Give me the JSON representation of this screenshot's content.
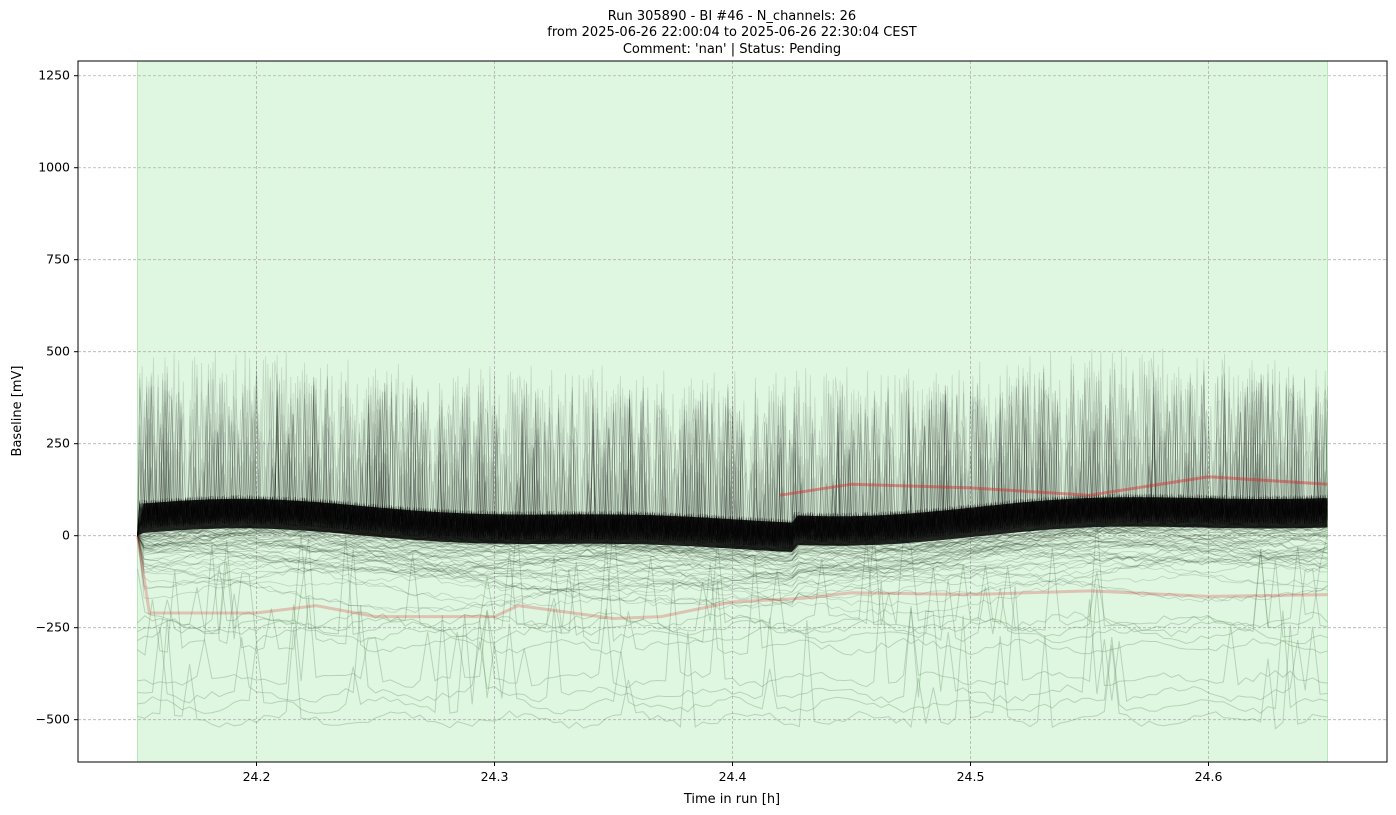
{
  "chart_data": {
    "type": "line",
    "title_lines": [
      "Run 305890  -  BI #46  -  N_channels: 26",
      "from  2025-06-26 22:00:04  to  2025-06-26 22:30:04 CEST",
      "Comment: 'nan' | Status: Pending"
    ],
    "xlabel": "Time in run [h]",
    "ylabel": "Baseline [mV]",
    "xlim": [
      24.125,
      24.675
    ],
    "ylim": [
      -615,
      1290
    ],
    "x_ticks": [
      24.2,
      24.3,
      24.4,
      24.5,
      24.6
    ],
    "x_tick_labels": [
      "24.2",
      "24.3",
      "24.4",
      "24.5",
      "24.6"
    ],
    "y_ticks": [
      -500,
      -250,
      0,
      250,
      500,
      750,
      1000,
      1250
    ],
    "y_tick_labels": [
      "−500",
      "−250",
      "0",
      "250",
      "500",
      "750",
      "1000",
      "1250"
    ],
    "grid": true,
    "highlight_span": {
      "x0": 24.15,
      "x1": 24.65,
      "color": "#dff7e0"
    },
    "series_style": {
      "black_color": "#000000",
      "red_color": "#d62728",
      "grey_color": "#6b8e6b"
    },
    "time_range": [
      24.15,
      24.65
    ],
    "bands": [
      {
        "kind": "black",
        "x": [
          24.15,
          24.2,
          24.25,
          24.3,
          24.35,
          24.4,
          24.45,
          24.5,
          24.55,
          24.6,
          24.65
        ],
        "y": [
          0,
          20,
          10,
          15,
          5,
          20,
          60,
          40,
          30,
          50,
          20
        ]
      }
    ],
    "red_lower": {
      "x": [
        24.15,
        24.155,
        24.2,
        24.225,
        24.25,
        24.3,
        24.31,
        24.35,
        24.37,
        24.4,
        24.43,
        24.45,
        24.5,
        24.55,
        24.6,
        24.65
      ],
      "y": [
        0,
        -210,
        -210,
        -190,
        -220,
        -220,
        -190,
        -225,
        -220,
        -180,
        -170,
        -155,
        -160,
        -150,
        -165,
        -160
      ]
    },
    "red_upper": {
      "x": [
        24.42,
        24.45,
        24.5,
        24.55,
        24.6,
        24.65
      ],
      "y": [
        110,
        140,
        130,
        110,
        160,
        140
      ]
    },
    "peak_annotations": []
  }
}
